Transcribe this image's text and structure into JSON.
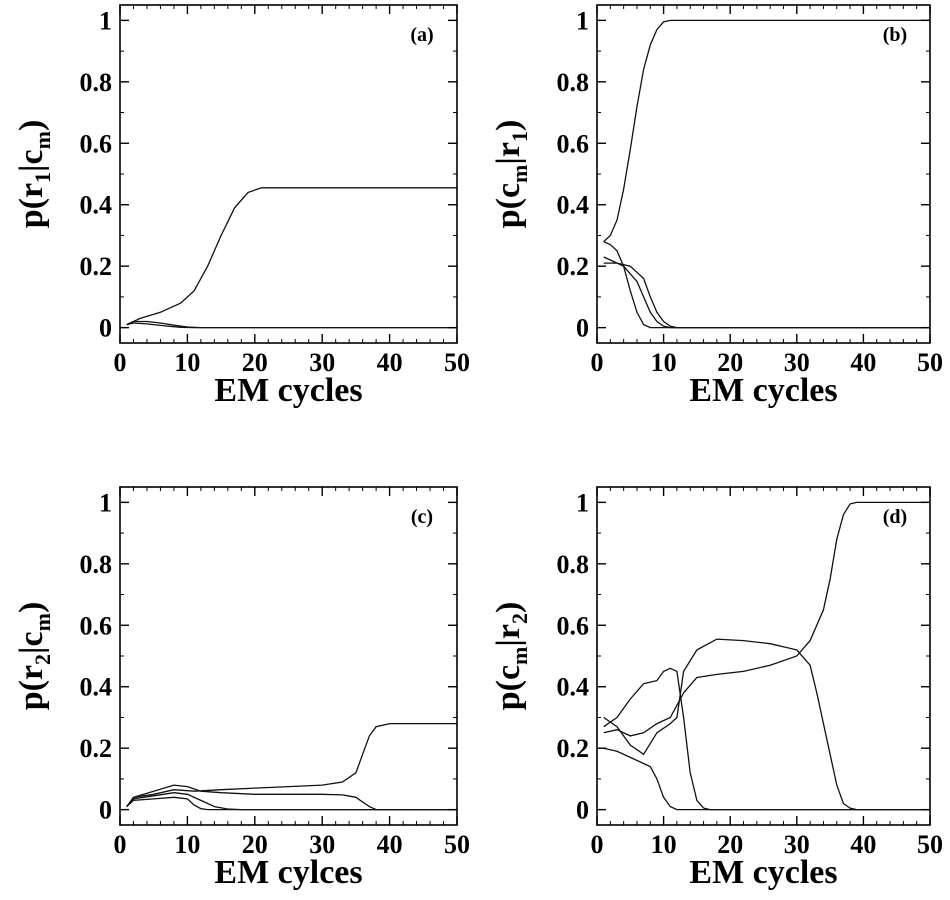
{
  "chart_data": [
    {
      "type": "line",
      "panel_label": "(a)",
      "xlabel": "EM cycles",
      "ylabel_main": "p(r",
      "ylabel_sub1": "1",
      "ylabel_mid": "|c",
      "ylabel_sub2": "m",
      "ylabel_end": ")",
      "xlim": [
        0,
        50
      ],
      "ylim": [
        -0.05,
        1.05
      ],
      "xticks": [
        0,
        10,
        20,
        30,
        40,
        50
      ],
      "yticks": [
        0,
        0.2,
        0.4,
        0.6,
        0.8,
        1
      ],
      "ytick_labels": [
        "0",
        "0.2",
        "0.4",
        "0.6",
        "0.8",
        "1"
      ],
      "series": [
        {
          "points": [
            [
              1,
              0.01
            ],
            [
              3,
              0.03
            ],
            [
              6,
              0.05
            ],
            [
              9,
              0.08
            ],
            [
              11,
              0.12
            ],
            [
              13,
              0.2
            ],
            [
              15,
              0.3
            ],
            [
              17,
              0.39
            ],
            [
              19,
              0.44
            ],
            [
              21,
              0.455
            ],
            [
              25,
              0.455
            ],
            [
              35,
              0.455
            ],
            [
              50,
              0.455
            ]
          ]
        },
        {
          "points": [
            [
              1,
              0.01
            ],
            [
              2,
              0.02
            ],
            [
              4,
              0.02
            ],
            [
              6,
              0.015
            ],
            [
              8,
              0.008
            ],
            [
              10,
              0.002
            ],
            [
              12,
              0
            ],
            [
              50,
              0
            ]
          ]
        },
        {
          "points": [
            [
              1,
              0.01
            ],
            [
              2,
              0.015
            ],
            [
              4,
              0.012
            ],
            [
              7,
              0.005
            ],
            [
              9,
              0.001
            ],
            [
              11,
              0
            ],
            [
              50,
              0
            ]
          ]
        }
      ]
    },
    {
      "type": "line",
      "panel_label": "(b)",
      "xlabel": "EM cycles",
      "ylabel_main": "p(c",
      "ylabel_sub1": "m",
      "ylabel_mid": "|r",
      "ylabel_sub2": "1",
      "ylabel_end": ")",
      "xlim": [
        0,
        50
      ],
      "ylim": [
        -0.05,
        1.05
      ],
      "xticks": [
        0,
        10,
        20,
        30,
        40,
        50
      ],
      "yticks": [
        0,
        0.2,
        0.4,
        0.6,
        0.8,
        1
      ],
      "ytick_labels": [
        "0",
        "0.2",
        "0.4",
        "0.6",
        "0.8",
        "1"
      ],
      "series": [
        {
          "points": [
            [
              1,
              0.28
            ],
            [
              2,
              0.3
            ],
            [
              3,
              0.35
            ],
            [
              4,
              0.45
            ],
            [
              5,
              0.58
            ],
            [
              6,
              0.72
            ],
            [
              7,
              0.84
            ],
            [
              8,
              0.92
            ],
            [
              9,
              0.97
            ],
            [
              10,
              0.995
            ],
            [
              11,
              1
            ],
            [
              50,
              1
            ]
          ]
        },
        {
          "points": [
            [
              1,
              0.28
            ],
            [
              2,
              0.27
            ],
            [
              3,
              0.25
            ],
            [
              4,
              0.2
            ],
            [
              5,
              0.12
            ],
            [
              6,
              0.05
            ],
            [
              7,
              0.01
            ],
            [
              8,
              0
            ],
            [
              50,
              0
            ]
          ]
        },
        {
          "points": [
            [
              1,
              0.23
            ],
            [
              2,
              0.22
            ],
            [
              4,
              0.2
            ],
            [
              6,
              0.15
            ],
            [
              7,
              0.1
            ],
            [
              8,
              0.05
            ],
            [
              9,
              0.02
            ],
            [
              10,
              0.005
            ],
            [
              11,
              0
            ],
            [
              50,
              0
            ]
          ]
        },
        {
          "points": [
            [
              1,
              0.21
            ],
            [
              3,
              0.21
            ],
            [
              5,
              0.2
            ],
            [
              7,
              0.16
            ],
            [
              8,
              0.1
            ],
            [
              9,
              0.05
            ],
            [
              10,
              0.02
            ],
            [
              11,
              0.005
            ],
            [
              12,
              0
            ],
            [
              50,
              0
            ]
          ]
        }
      ]
    },
    {
      "type": "line",
      "panel_label": "(c)",
      "xlabel": "EM cylces",
      "ylabel_main": "p(r",
      "ylabel_sub1": "2",
      "ylabel_mid": "|c",
      "ylabel_sub2": "m",
      "ylabel_end": ")",
      "xlim": [
        0,
        50
      ],
      "ylim": [
        -0.05,
        1.05
      ],
      "xticks": [
        0,
        10,
        20,
        30,
        40,
        50
      ],
      "yticks": [
        0,
        0.2,
        0.4,
        0.6,
        0.8,
        1
      ],
      "ytick_labels": [
        "0",
        "0.2",
        "0.4",
        "0.6",
        "0.8",
        "1"
      ],
      "series": [
        {
          "points": [
            [
              1,
              0.01
            ],
            [
              2,
              0.04
            ],
            [
              5,
              0.05
            ],
            [
              8,
              0.065
            ],
            [
              11,
              0.06
            ],
            [
              15,
              0.065
            ],
            [
              20,
              0.07
            ],
            [
              25,
              0.075
            ],
            [
              30,
              0.08
            ],
            [
              33,
              0.09
            ],
            [
              35,
              0.12
            ],
            [
              36,
              0.18
            ],
            [
              37,
              0.24
            ],
            [
              38,
              0.27
            ],
            [
              40,
              0.28
            ],
            [
              50,
              0.28
            ]
          ]
        },
        {
          "points": [
            [
              1,
              0.01
            ],
            [
              2,
              0.04
            ],
            [
              5,
              0.06
            ],
            [
              8,
              0.08
            ],
            [
              10,
              0.075
            ],
            [
              12,
              0.06
            ],
            [
              15,
              0.055
            ],
            [
              20,
              0.05
            ],
            [
              25,
              0.05
            ],
            [
              30,
              0.05
            ],
            [
              33,
              0.048
            ],
            [
              35,
              0.04
            ],
            [
              36,
              0.025
            ],
            [
              37,
              0.01
            ],
            [
              38,
              0
            ],
            [
              50,
              0
            ]
          ]
        },
        {
          "points": [
            [
              1,
              0.01
            ],
            [
              2,
              0.035
            ],
            [
              5,
              0.045
            ],
            [
              8,
              0.055
            ],
            [
              10,
              0.05
            ],
            [
              12,
              0.03
            ],
            [
              14,
              0.01
            ],
            [
              16,
              0.002
            ],
            [
              18,
              0
            ],
            [
              50,
              0
            ]
          ]
        },
        {
          "points": [
            [
              1,
              0.01
            ],
            [
              2,
              0.03
            ],
            [
              5,
              0.035
            ],
            [
              8,
              0.04
            ],
            [
              10,
              0.035
            ],
            [
              11,
              0.015
            ],
            [
              12,
              0.003
            ],
            [
              13,
              0
            ],
            [
              50,
              0
            ]
          ]
        }
      ]
    },
    {
      "type": "line",
      "panel_label": "(d)",
      "xlabel": "EM cycles",
      "ylabel_main": "p(c",
      "ylabel_sub1": "m",
      "ylabel_mid": "|r",
      "ylabel_sub2": "2",
      "ylabel_end": ")",
      "xlim": [
        0,
        50
      ],
      "ylim": [
        -0.05,
        1.05
      ],
      "xticks": [
        0,
        10,
        20,
        30,
        40,
        50
      ],
      "yticks": [
        0,
        0.2,
        0.4,
        0.6,
        0.8,
        1
      ],
      "ytick_labels": [
        "0",
        "0.2",
        "0.4",
        "0.6",
        "0.8",
        "1"
      ],
      "series": [
        {
          "points": [
            [
              1,
              0.25
            ],
            [
              3,
              0.26
            ],
            [
              5,
              0.24
            ],
            [
              7,
              0.25
            ],
            [
              9,
              0.28
            ],
            [
              11,
              0.3
            ],
            [
              13,
              0.38
            ],
            [
              15,
              0.43
            ],
            [
              18,
              0.44
            ],
            [
              22,
              0.45
            ],
            [
              26,
              0.47
            ],
            [
              30,
              0.5
            ],
            [
              32,
              0.55
            ],
            [
              34,
              0.65
            ],
            [
              35,
              0.75
            ],
            [
              36,
              0.88
            ],
            [
              37,
              0.96
            ],
            [
              38,
              0.995
            ],
            [
              39,
              1
            ],
            [
              50,
              1
            ]
          ]
        },
        {
          "points": [
            [
              1,
              0.3
            ],
            [
              3,
              0.27
            ],
            [
              5,
              0.21
            ],
            [
              7,
              0.18
            ],
            [
              9,
              0.25
            ],
            [
              11,
              0.28
            ],
            [
              12,
              0.3
            ],
            [
              13,
              0.45
            ],
            [
              15,
              0.52
            ],
            [
              18,
              0.555
            ],
            [
              22,
              0.55
            ],
            [
              26,
              0.54
            ],
            [
              30,
              0.52
            ],
            [
              32,
              0.47
            ],
            [
              33,
              0.38
            ],
            [
              35,
              0.18
            ],
            [
              36,
              0.08
            ],
            [
              37,
              0.02
            ],
            [
              38,
              0.005
            ],
            [
              39,
              0
            ],
            [
              50,
              0
            ]
          ]
        },
        {
          "points": [
            [
              1,
              0.27
            ],
            [
              3,
              0.3
            ],
            [
              5,
              0.36
            ],
            [
              7,
              0.41
            ],
            [
              9,
              0.42
            ],
            [
              10,
              0.45
            ],
            [
              11,
              0.46
            ],
            [
              12,
              0.45
            ],
            [
              13,
              0.3
            ],
            [
              14,
              0.12
            ],
            [
              15,
              0.03
            ],
            [
              16,
              0.005
            ],
            [
              17,
              0
            ],
            [
              50,
              0
            ]
          ]
        },
        {
          "points": [
            [
              1,
              0.2
            ],
            [
              3,
              0.19
            ],
            [
              5,
              0.17
            ],
            [
              7,
              0.15
            ],
            [
              8,
              0.14
            ],
            [
              9,
              0.1
            ],
            [
              10,
              0.04
            ],
            [
              11,
              0.01
            ],
            [
              12,
              0
            ],
            [
              50,
              0
            ]
          ]
        }
      ]
    }
  ]
}
